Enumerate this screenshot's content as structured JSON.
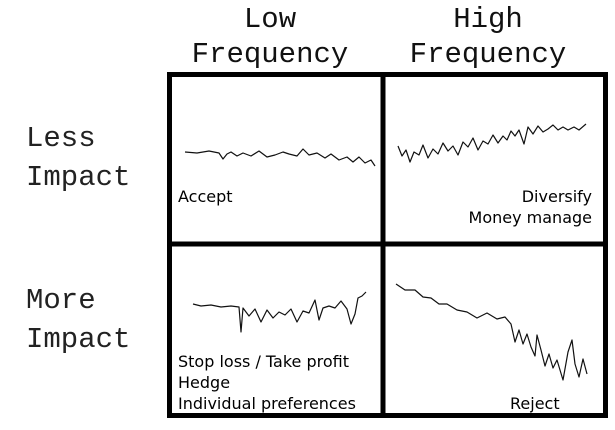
{
  "columns": {
    "low": {
      "line1": "Low",
      "line2": "Frequency"
    },
    "high": {
      "line1": "High",
      "line2": "Frequency"
    }
  },
  "rows": {
    "less": {
      "line1": "Less",
      "line2": "Impact"
    },
    "more": {
      "line1": "More",
      "line2": "Impact"
    }
  },
  "quadrants": {
    "low_frequency_less_impact": {
      "action": "Accept"
    },
    "high_frequency_less_impact": {
      "line1": "Diversify",
      "line2": "Money manage"
    },
    "low_frequency_more_impact": {
      "line1": "Stop loss / Take profit",
      "line2": "Hedge",
      "line3": "Individual preferences"
    },
    "high_frequency_more_impact": {
      "action": "Reject"
    }
  },
  "colors": {
    "grid": "#000000",
    "sketch_line": "#111111",
    "text": "#000000"
  }
}
